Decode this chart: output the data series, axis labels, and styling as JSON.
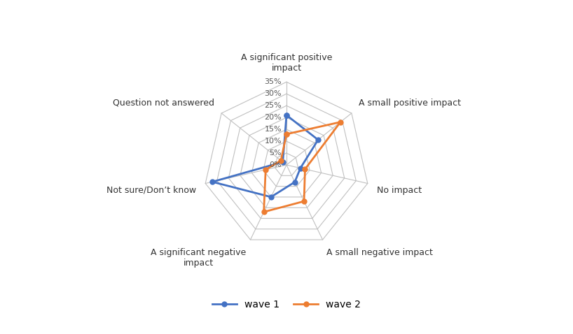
{
  "categories": [
    "A significant positive\nimpact",
    "A small positive impact",
    "No impact",
    "A small negative impact",
    "A significant negative\nimpact",
    "Not sure/Don’t know",
    "Question not answered"
  ],
  "wave1": [
    21,
    17,
    6,
    8,
    15,
    32,
    2
  ],
  "wave2": [
    13,
    29,
    8,
    17,
    22,
    9,
    3
  ],
  "wave1_color": "#4472C4",
  "wave2_color": "#ED7D31",
  "wave1_label": "wave 1",
  "wave2_label": "wave 2",
  "r_max": 35,
  "r_ticks": [
    5,
    10,
    15,
    20,
    25,
    30,
    35
  ],
  "r_tick_labels": [
    "5%",
    "10%",
    "15%",
    "20%",
    "25%",
    "30%",
    "35%"
  ],
  "r_all_ticks": [
    0,
    5,
    10,
    15,
    20,
    25,
    30,
    35
  ],
  "r_all_labels": [
    "0%",
    "5%",
    "10%",
    "15%",
    "20%",
    "25%",
    "30%",
    "35%"
  ],
  "background_color": "#ffffff",
  "grid_color": "#c0c0c0",
  "label_color": "#595959"
}
